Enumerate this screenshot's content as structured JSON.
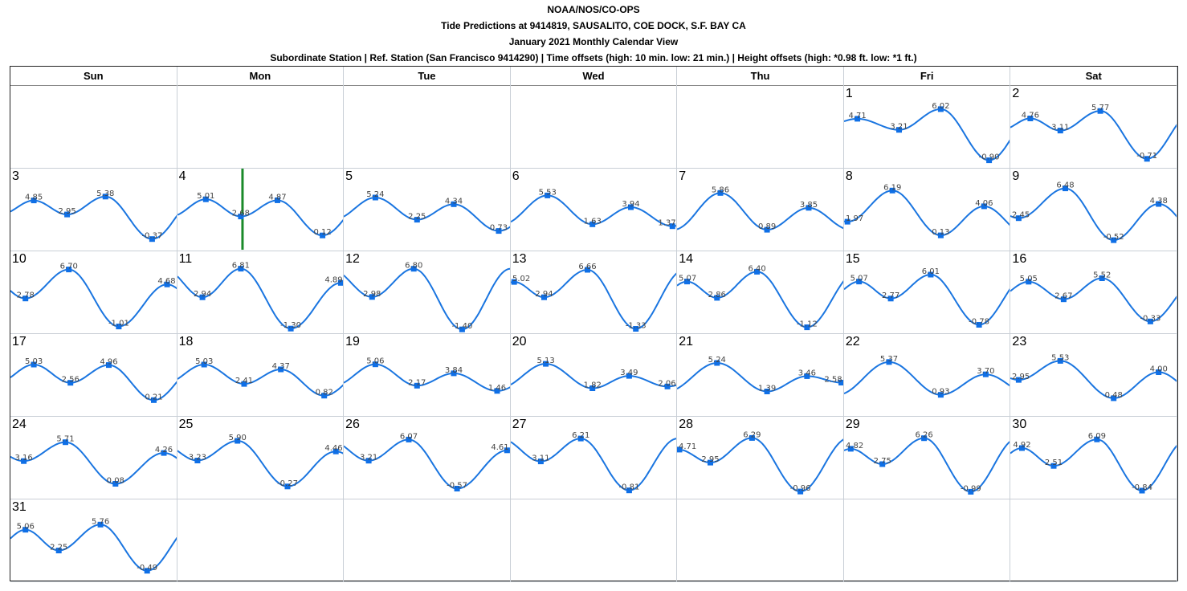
{
  "header": {
    "line1": "NOAA/NOS/CO-OPS",
    "line2": "Tide Predictions at 9414819, SAUSALITO, COE DOCK, S.F. BAY CA",
    "line3": "January 2021 Monthly Calendar View",
    "line4": "Subordinate Station | Ref. Station (San Francisco 9414290) | Time offsets (high: 10 min. low: 21 min.) | Height offsets (high: *0.98 ft. low: *1 ft.)"
  },
  "weekdays": [
    "Sun",
    "Mon",
    "Tue",
    "Wed",
    "Thu",
    "Fri",
    "Sat"
  ],
  "colors": {
    "curve": "#1a75e0",
    "marker": "#0f6fe6",
    "today_line": "#1a8a2a",
    "grid": "#c9cfd6"
  },
  "chart_data": {
    "type": "line",
    "title": "January 2021 Monthly Calendar View",
    "ylim": [
      -1.6,
      7.2
    ],
    "first_weekday_index": 5,
    "current_day_marker": 4,
    "days": [
      {
        "day": 1,
        "tides": [
          {
            "t": 0.08,
            "v": 4.71
          },
          {
            "t": 0.33,
            "v": 3.21
          },
          {
            "t": 0.58,
            "v": 6.02
          },
          {
            "t": 0.87,
            "v": -0.9
          }
        ]
      },
      {
        "day": 2,
        "tides": [
          {
            "t": 0.12,
            "v": 4.76
          },
          {
            "t": 0.3,
            "v": 3.11
          },
          {
            "t": 0.54,
            "v": 5.77
          },
          {
            "t": 0.82,
            "v": -0.71
          }
        ]
      },
      {
        "day": 3,
        "tides": [
          {
            "t": 0.14,
            "v": 4.85
          },
          {
            "t": 0.34,
            "v": 2.95
          },
          {
            "t": 0.57,
            "v": 5.38
          },
          {
            "t": 0.85,
            "v": -0.37
          }
        ]
      },
      {
        "day": 4,
        "tides": [
          {
            "t": 0.17,
            "v": 5.01
          },
          {
            "t": 0.38,
            "v": 2.68
          },
          {
            "t": 0.6,
            "v": 4.87
          },
          {
            "t": 0.87,
            "v": 0.12
          }
        ]
      },
      {
        "day": 5,
        "tides": [
          {
            "t": 0.19,
            "v": 5.24
          },
          {
            "t": 0.44,
            "v": 2.25
          },
          {
            "t": 0.66,
            "v": 4.34
          },
          {
            "t": 0.93,
            "v": 0.73
          }
        ]
      },
      {
        "day": 6,
        "tides": [
          {
            "t": 0.22,
            "v": 5.53
          },
          {
            "t": 0.49,
            "v": 1.63
          },
          {
            "t": 0.72,
            "v": 3.94
          },
          {
            "t": 0.97,
            "v": 1.37
          }
        ]
      },
      {
        "day": 7,
        "tides": [
          {
            "t": 0.26,
            "v": 5.86
          },
          {
            "t": 0.54,
            "v": 0.89
          },
          {
            "t": 0.79,
            "v": 3.85
          }
        ]
      },
      {
        "day": 8,
        "tides": [
          {
            "t": 0.02,
            "v": 1.97
          },
          {
            "t": 0.29,
            "v": 6.19
          },
          {
            "t": 0.58,
            "v": 0.13
          },
          {
            "t": 0.84,
            "v": 4.06
          }
        ]
      },
      {
        "day": 9,
        "tides": [
          {
            "t": 0.05,
            "v": 2.45
          },
          {
            "t": 0.33,
            "v": 6.48
          },
          {
            "t": 0.62,
            "v": -0.52
          },
          {
            "t": 0.89,
            "v": 4.38
          }
        ]
      },
      {
        "day": 10,
        "tides": [
          {
            "t": 0.09,
            "v": 2.78
          },
          {
            "t": 0.35,
            "v": 6.7
          },
          {
            "t": 0.65,
            "v": -1.01
          },
          {
            "t": 0.94,
            "v": 4.68
          }
        ]
      },
      {
        "day": 11,
        "tides": [
          {
            "t": 0.15,
            "v": 2.94
          },
          {
            "t": 0.38,
            "v": 6.81
          },
          {
            "t": 0.68,
            "v": -1.3
          },
          {
            "t": 0.98,
            "v": 4.89
          }
        ]
      },
      {
        "day": 12,
        "tides": [
          {
            "t": 0.17,
            "v": 2.98
          },
          {
            "t": 0.42,
            "v": 6.8
          },
          {
            "t": 0.71,
            "v": -1.4
          }
        ]
      },
      {
        "day": 13,
        "tides": [
          {
            "t": 0.02,
            "v": 5.02
          },
          {
            "t": 0.2,
            "v": 2.94
          },
          {
            "t": 0.46,
            "v": 6.66
          },
          {
            "t": 0.75,
            "v": -1.33
          }
        ]
      },
      {
        "day": 14,
        "tides": [
          {
            "t": 0.06,
            "v": 5.07
          },
          {
            "t": 0.24,
            "v": 2.86
          },
          {
            "t": 0.48,
            "v": 6.4
          },
          {
            "t": 0.78,
            "v": -1.12
          }
        ]
      },
      {
        "day": 15,
        "tides": [
          {
            "t": 0.09,
            "v": 5.07
          },
          {
            "t": 0.28,
            "v": 2.77
          },
          {
            "t": 0.52,
            "v": 6.01
          },
          {
            "t": 0.81,
            "v": -0.78
          }
        ]
      },
      {
        "day": 16,
        "tides": [
          {
            "t": 0.11,
            "v": 5.05
          },
          {
            "t": 0.32,
            "v": 2.67
          },
          {
            "t": 0.55,
            "v": 5.52
          },
          {
            "t": 0.84,
            "v": -0.33
          }
        ]
      },
      {
        "day": 17,
        "tides": [
          {
            "t": 0.14,
            "v": 5.03
          },
          {
            "t": 0.36,
            "v": 2.56
          },
          {
            "t": 0.59,
            "v": 4.96
          },
          {
            "t": 0.86,
            "v": 0.21
          }
        ]
      },
      {
        "day": 18,
        "tides": [
          {
            "t": 0.16,
            "v": 5.03
          },
          {
            "t": 0.4,
            "v": 2.41
          },
          {
            "t": 0.62,
            "v": 4.37
          },
          {
            "t": 0.88,
            "v": 0.82
          }
        ]
      },
      {
        "day": 19,
        "tides": [
          {
            "t": 0.19,
            "v": 5.06
          },
          {
            "t": 0.44,
            "v": 2.17
          },
          {
            "t": 0.66,
            "v": 3.84
          },
          {
            "t": 0.92,
            "v": 1.46
          }
        ]
      },
      {
        "day": 20,
        "tides": [
          {
            "t": 0.21,
            "v": 5.13
          },
          {
            "t": 0.49,
            "v": 1.82
          },
          {
            "t": 0.71,
            "v": 3.49
          },
          {
            "t": 0.94,
            "v": 2.06
          }
        ]
      },
      {
        "day": 21,
        "tides": [
          {
            "t": 0.24,
            "v": 5.24
          },
          {
            "t": 0.54,
            "v": 1.39
          },
          {
            "t": 0.78,
            "v": 3.46
          },
          {
            "t": 0.99,
            "v": 2.58
          }
        ]
      },
      {
        "day": 22,
        "tides": [
          {
            "t": 0.27,
            "v": 5.37
          },
          {
            "t": 0.58,
            "v": 0.93
          },
          {
            "t": 0.85,
            "v": 3.7
          }
        ]
      },
      {
        "day": 23,
        "tides": [
          {
            "t": 0.05,
            "v": 2.95
          },
          {
            "t": 0.3,
            "v": 5.53
          },
          {
            "t": 0.62,
            "v": 0.48
          },
          {
            "t": 0.89,
            "v": 4.0
          }
        ]
      },
      {
        "day": 24,
        "tides": [
          {
            "t": 0.08,
            "v": 3.16
          },
          {
            "t": 0.33,
            "v": 5.71
          },
          {
            "t": 0.63,
            "v": 0.08
          },
          {
            "t": 0.92,
            "v": 4.26
          }
        ]
      },
      {
        "day": 25,
        "tides": [
          {
            "t": 0.12,
            "v": 3.23
          },
          {
            "t": 0.36,
            "v": 5.9
          },
          {
            "t": 0.66,
            "v": -0.27
          },
          {
            "t": 0.95,
            "v": 4.46
          }
        ]
      },
      {
        "day": 26,
        "tides": [
          {
            "t": 0.15,
            "v": 3.21
          },
          {
            "t": 0.39,
            "v": 6.07
          },
          {
            "t": 0.68,
            "v": -0.57
          },
          {
            "t": 0.98,
            "v": 4.61
          }
        ]
      },
      {
        "day": 27,
        "tides": [
          {
            "t": 0.18,
            "v": 3.11
          },
          {
            "t": 0.42,
            "v": 6.21
          },
          {
            "t": 0.71,
            "v": -0.81
          }
        ]
      },
      {
        "day": 28,
        "tides": [
          {
            "t": 0.01,
            "v": 4.71
          },
          {
            "t": 0.2,
            "v": 2.95
          },
          {
            "t": 0.45,
            "v": 6.29
          },
          {
            "t": 0.74,
            "v": -0.96
          }
        ]
      },
      {
        "day": 29,
        "tides": [
          {
            "t": 0.04,
            "v": 4.82
          },
          {
            "t": 0.23,
            "v": 2.75
          },
          {
            "t": 0.48,
            "v": 6.26
          },
          {
            "t": 0.76,
            "v": -0.99
          }
        ]
      },
      {
        "day": 30,
        "tides": [
          {
            "t": 0.07,
            "v": 4.92
          },
          {
            "t": 0.26,
            "v": 2.51
          },
          {
            "t": 0.52,
            "v": 6.09
          },
          {
            "t": 0.79,
            "v": -0.84
          }
        ]
      },
      {
        "day": 31,
        "tides": [
          {
            "t": 0.09,
            "v": 5.06
          },
          {
            "t": 0.29,
            "v": 2.25
          },
          {
            "t": 0.54,
            "v": 5.76
          },
          {
            "t": 0.82,
            "v": -0.49
          }
        ]
      }
    ]
  }
}
